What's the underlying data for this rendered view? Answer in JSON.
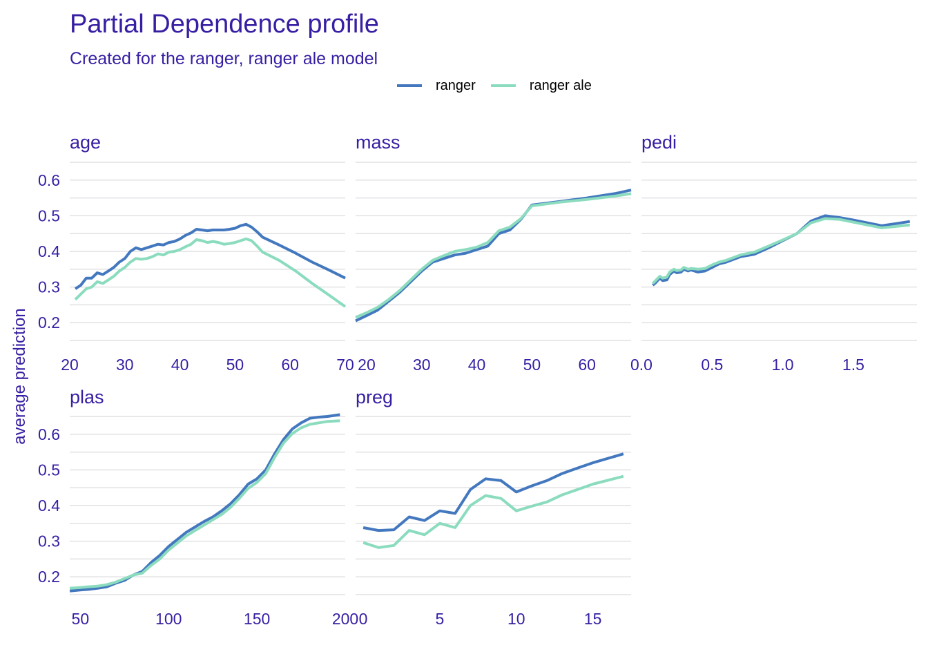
{
  "chart": {
    "title": "Partial Dependence profile",
    "subtitle": "Created for the ranger, ranger ale model",
    "ylabel": "average prediction"
  },
  "legend": [
    {
      "name": "ranger",
      "color": "#4378bf"
    },
    {
      "name": "ranger ale",
      "color": "#8bdcbe"
    }
  ],
  "chart_data": {
    "type": "line",
    "ylabel": "average prediction",
    "legend_position": "top",
    "grid": true,
    "yticks": [
      0.2,
      0.3,
      0.4,
      0.5,
      0.6
    ],
    "series_names": [
      "ranger",
      "ranger ale"
    ],
    "panels": [
      {
        "variable": "age",
        "xlim": [
          20,
          70
        ],
        "xticks": [
          20,
          30,
          40,
          50,
          60,
          70
        ],
        "ylim": [
          0.15,
          0.65
        ],
        "series": [
          {
            "name": "ranger",
            "x": [
              21,
              22,
              23,
              24,
              25,
              26,
              27,
              28,
              29,
              30,
              31,
              32,
              33,
              34,
              35,
              36,
              37,
              38,
              39,
              40,
              41,
              42,
              43,
              44,
              45,
              46,
              47,
              48,
              49,
              50,
              51,
              52,
              53,
              54,
              55,
              58,
              61,
              64,
              67,
              70
            ],
            "y": [
              0.295,
              0.305,
              0.325,
              0.325,
              0.34,
              0.335,
              0.345,
              0.355,
              0.37,
              0.38,
              0.4,
              0.41,
              0.405,
              0.41,
              0.415,
              0.42,
              0.418,
              0.425,
              0.428,
              0.435,
              0.445,
              0.452,
              0.462,
              0.46,
              0.458,
              0.46,
              0.46,
              0.46,
              0.462,
              0.465,
              0.472,
              0.476,
              0.468,
              0.455,
              0.44,
              0.418,
              0.395,
              0.37,
              0.348,
              0.325
            ]
          },
          {
            "name": "ranger ale",
            "x": [
              21,
              22,
              23,
              24,
              25,
              26,
              27,
              28,
              29,
              30,
              31,
              32,
              33,
              34,
              35,
              36,
              37,
              38,
              39,
              40,
              41,
              42,
              43,
              44,
              45,
              46,
              47,
              48,
              49,
              50,
              51,
              52,
              53,
              54,
              55,
              58,
              61,
              64,
              67,
              70
            ],
            "y": [
              0.265,
              0.28,
              0.295,
              0.3,
              0.315,
              0.31,
              0.32,
              0.33,
              0.345,
              0.355,
              0.37,
              0.38,
              0.378,
              0.38,
              0.385,
              0.393,
              0.39,
              0.398,
              0.4,
              0.405,
              0.413,
              0.42,
              0.433,
              0.43,
              0.425,
              0.428,
              0.425,
              0.42,
              0.422,
              0.425,
              0.43,
              0.435,
              0.43,
              0.415,
              0.398,
              0.375,
              0.345,
              0.31,
              0.278,
              0.245
            ]
          }
        ]
      },
      {
        "variable": "mass",
        "xlim": [
          18,
          68
        ],
        "xticks": [
          20,
          30,
          40,
          50,
          60
        ],
        "ylim": [
          0.15,
          0.65
        ],
        "series": [
          {
            "name": "ranger",
            "x": [
              18,
              20,
              22,
              24,
              26,
              28,
              30,
              32,
              34,
              36,
              38,
              40,
              42,
              44,
              46,
              48,
              50,
              55,
              60,
              65,
              68
            ],
            "y": [
              0.205,
              0.22,
              0.235,
              0.26,
              0.285,
              0.315,
              0.345,
              0.37,
              0.38,
              0.39,
              0.395,
              0.405,
              0.415,
              0.45,
              0.46,
              0.49,
              0.53,
              0.54,
              0.55,
              0.562,
              0.572
            ]
          },
          {
            "name": "ranger ale",
            "x": [
              18,
              20,
              22,
              24,
              26,
              28,
              30,
              32,
              34,
              36,
              38,
              40,
              42,
              44,
              46,
              48,
              50,
              55,
              60,
              65,
              68
            ],
            "y": [
              0.215,
              0.228,
              0.243,
              0.265,
              0.29,
              0.32,
              0.35,
              0.375,
              0.388,
              0.4,
              0.405,
              0.412,
              0.425,
              0.458,
              0.468,
              0.492,
              0.528,
              0.538,
              0.546,
              0.555,
              0.562
            ]
          }
        ]
      },
      {
        "variable": "pedi",
        "xlim": [
          0.0,
          1.95
        ],
        "xticks": [
          0.0,
          0.5,
          1.0,
          1.5
        ],
        "xtick_labels": [
          "0.0",
          "0.5",
          "1.0",
          "1.5"
        ],
        "ylim": [
          0.15,
          0.65
        ],
        "series": [
          {
            "name": "ranger",
            "x": [
              0.08,
              0.1,
              0.13,
              0.15,
              0.18,
              0.2,
              0.23,
              0.25,
              0.28,
              0.3,
              0.33,
              0.35,
              0.4,
              0.45,
              0.5,
              0.55,
              0.6,
              0.7,
              0.8,
              0.9,
              1.0,
              1.1,
              1.2,
              1.3,
              1.4,
              1.5,
              1.6,
              1.7,
              1.8,
              1.9
            ],
            "y": [
              0.305,
              0.312,
              0.325,
              0.318,
              0.32,
              0.335,
              0.345,
              0.34,
              0.342,
              0.35,
              0.345,
              0.348,
              0.342,
              0.345,
              0.355,
              0.365,
              0.37,
              0.385,
              0.392,
              0.41,
              0.43,
              0.45,
              0.485,
              0.5,
              0.495,
              0.488,
              0.48,
              0.472,
              0.478,
              0.484
            ]
          },
          {
            "name": "ranger ale",
            "x": [
              0.08,
              0.1,
              0.13,
              0.15,
              0.18,
              0.2,
              0.23,
              0.25,
              0.28,
              0.3,
              0.33,
              0.35,
              0.4,
              0.45,
              0.5,
              0.55,
              0.6,
              0.7,
              0.8,
              0.9,
              1.0,
              1.1,
              1.2,
              1.3,
              1.4,
              1.5,
              1.6,
              1.7,
              1.8,
              1.9
            ],
            "y": [
              0.31,
              0.318,
              0.33,
              0.325,
              0.328,
              0.342,
              0.35,
              0.346,
              0.348,
              0.355,
              0.35,
              0.352,
              0.35,
              0.352,
              0.362,
              0.37,
              0.375,
              0.39,
              0.398,
              0.415,
              0.432,
              0.45,
              0.48,
              0.492,
              0.49,
              0.482,
              0.474,
              0.466,
              0.47,
              0.474
            ]
          }
        ]
      },
      {
        "variable": "plas",
        "xlim": [
          44,
          200
        ],
        "xticks": [
          50,
          100,
          150,
          200
        ],
        "ylim": [
          0.15,
          0.65
        ],
        "series": [
          {
            "name": "ranger",
            "x": [
              44,
              50,
              55,
              60,
              65,
              70,
              75,
              80,
              85,
              90,
              95,
              100,
              105,
              110,
              115,
              120,
              125,
              130,
              135,
              140,
              145,
              150,
              155,
              160,
              165,
              170,
              175,
              180,
              185,
              190,
              197
            ],
            "y": [
              0.16,
              0.163,
              0.165,
              0.168,
              0.172,
              0.182,
              0.19,
              0.205,
              0.215,
              0.24,
              0.26,
              0.285,
              0.305,
              0.325,
              0.34,
              0.355,
              0.368,
              0.385,
              0.405,
              0.43,
              0.46,
              0.475,
              0.5,
              0.545,
              0.585,
              0.615,
              0.632,
              0.645,
              0.648,
              0.65,
              0.655
            ]
          },
          {
            "name": "ranger ale",
            "x": [
              44,
              50,
              55,
              60,
              65,
              70,
              75,
              80,
              85,
              90,
              95,
              100,
              105,
              110,
              115,
              120,
              125,
              130,
              135,
              140,
              145,
              150,
              155,
              160,
              165,
              170,
              175,
              180,
              185,
              190,
              197
            ],
            "y": [
              0.168,
              0.17,
              0.172,
              0.174,
              0.178,
              0.185,
              0.195,
              0.205,
              0.21,
              0.232,
              0.25,
              0.275,
              0.295,
              0.315,
              0.33,
              0.345,
              0.36,
              0.375,
              0.395,
              0.42,
              0.448,
              0.465,
              0.49,
              0.535,
              0.575,
              0.602,
              0.618,
              0.628,
              0.632,
              0.636,
              0.638
            ]
          }
        ]
      },
      {
        "variable": "preg",
        "xlim": [
          -0.5,
          17.5
        ],
        "xticks": [
          0,
          5,
          10,
          15
        ],
        "ylim": [
          0.15,
          0.65
        ],
        "series": [
          {
            "name": "ranger",
            "x": [
              0,
              1,
              2,
              3,
              4,
              5,
              6,
              7,
              8,
              9,
              10,
              11,
              12,
              13,
              14,
              15,
              17
            ],
            "y": [
              0.338,
              0.33,
              0.332,
              0.368,
              0.358,
              0.385,
              0.378,
              0.445,
              0.475,
              0.47,
              0.438,
              0.455,
              0.47,
              0.49,
              0.505,
              0.52,
              0.545
            ]
          },
          {
            "name": "ranger ale",
            "x": [
              0,
              1,
              2,
              3,
              4,
              5,
              6,
              7,
              8,
              9,
              10,
              11,
              12,
              13,
              14,
              15,
              17
            ],
            "y": [
              0.296,
              0.282,
              0.288,
              0.33,
              0.318,
              0.35,
              0.338,
              0.4,
              0.428,
              0.42,
              0.385,
              0.398,
              0.41,
              0.43,
              0.445,
              0.46,
              0.482
            ]
          }
        ]
      }
    ]
  }
}
